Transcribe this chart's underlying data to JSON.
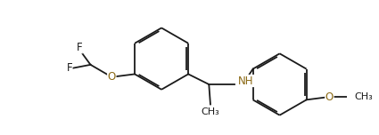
{
  "background_color": "#ffffff",
  "line_color": "#1a1a1a",
  "atom_color_O": "#8B6914",
  "atom_color_N": "#8B6914",
  "atom_color_F": "#1a1a1a",
  "figsize": [
    4.25,
    1.52
  ],
  "dpi": 100,
  "bond_lw": 1.3,
  "font_size": 8.5,
  "doff": 0.055,
  "xlim": [
    -0.2,
    10.5
  ],
  "ylim": [
    0.2,
    4.8
  ]
}
